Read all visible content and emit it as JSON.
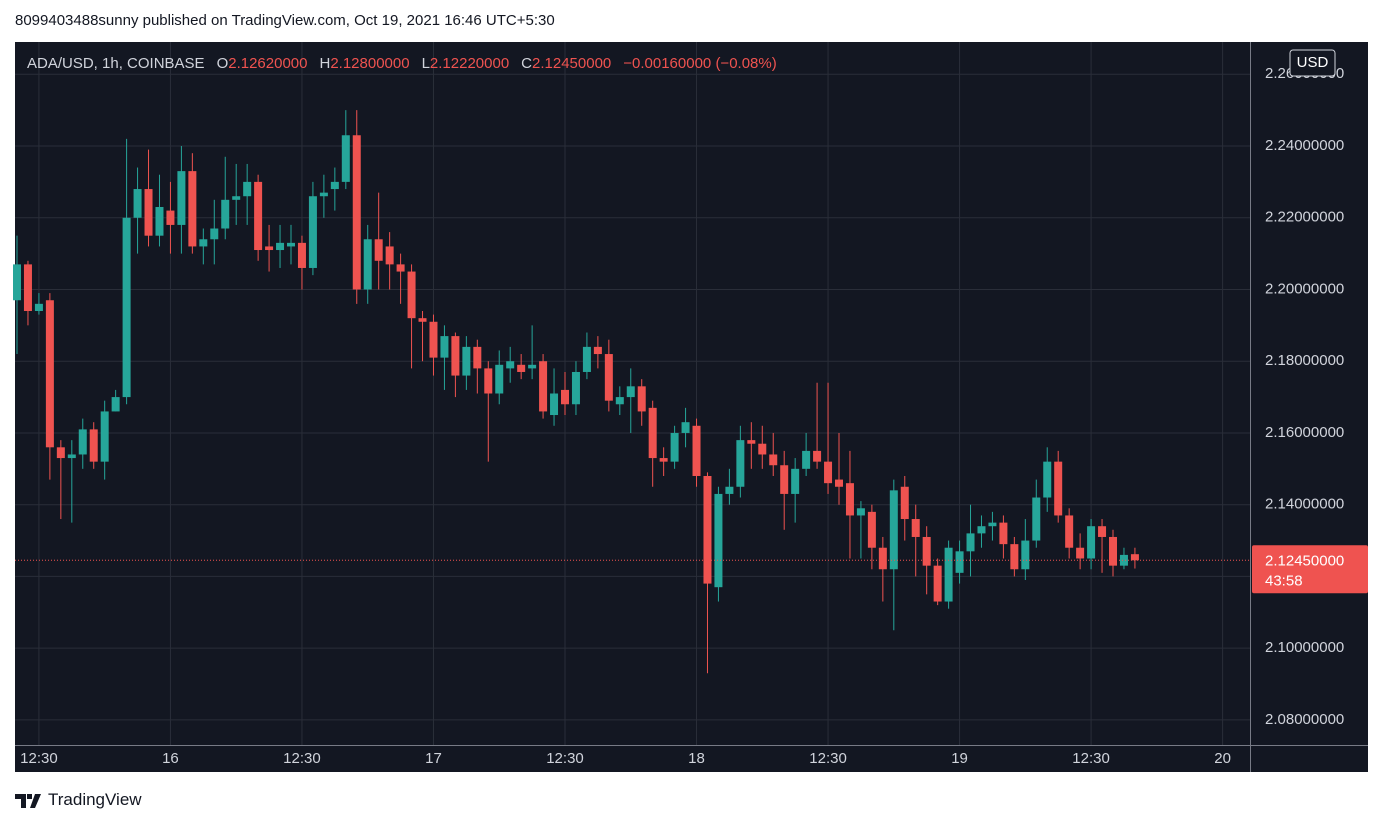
{
  "header": "8099403488sunny published on TradingView.com, Oct 19, 2021 16:46 UTC+5:30",
  "footer": "TradingView",
  "chart_data": {
    "type": "candlestick",
    "legend": {
      "symbol": "ADA/USD, 1h, COINBASE",
      "fields": [
        {
          "label": "O",
          "value": "2.12620000"
        },
        {
          "label": "H",
          "value": "2.12800000"
        },
        {
          "label": "L",
          "value": "2.12220000"
        },
        {
          "label": "C",
          "value": "2.12450000"
        }
      ],
      "change": "−0.00160000 (−0.08%)"
    },
    "currency": "USD",
    "up_color": "#26a69a",
    "down_color": "#ef5350",
    "grid": true,
    "xticks": [
      "12:30",
      "16",
      "12:30",
      "17",
      "12:30",
      "18",
      "12:30",
      "19",
      "12:30",
      "20"
    ],
    "ylim": [
      2.073,
      2.269
    ],
    "yticks": [
      {
        "value": 2.08,
        "label": "2.08000000"
      },
      {
        "value": 2.1,
        "label": "2.10000000"
      },
      {
        "value": 2.12,
        "label": "2.12000000"
      },
      {
        "value": 2.14,
        "label": "2.14000000"
      },
      {
        "value": 2.16,
        "label": "2.16000000"
      },
      {
        "value": 2.18,
        "label": "2.18000000"
      },
      {
        "value": 2.2,
        "label": "2.20000000"
      },
      {
        "value": 2.22,
        "label": "2.22000000"
      },
      {
        "value": 2.24,
        "label": "2.24000000"
      },
      {
        "value": 2.26,
        "label": "2.26000000"
      }
    ],
    "last_price": {
      "value": 2.1245,
      "label": "2.12450000",
      "countdown": "43:58"
    },
    "open": [
      2.197,
      2.207,
      2.194,
      2.197,
      2.156,
      2.153,
      2.154,
      2.161,
      2.152,
      2.166,
      2.17,
      2.22,
      2.228,
      2.215,
      2.222,
      2.218,
      2.233,
      2.212,
      2.214,
      2.217,
      2.225,
      2.226,
      2.23,
      2.212,
      2.211,
      2.212,
      2.213,
      2.206,
      2.226,
      2.228,
      2.23,
      2.243,
      2.2,
      2.214,
      2.212,
      2.207,
      2.205,
      2.192,
      2.191,
      2.181,
      2.187,
      2.176,
      2.184,
      2.178,
      2.171,
      2.178,
      2.179,
      2.178,
      2.18,
      2.165,
      2.172,
      2.168,
      2.177,
      2.184,
      2.182,
      2.168,
      2.17,
      2.173,
      2.167,
      2.153,
      2.152,
      2.16,
      2.162,
      2.148,
      2.117,
      2.143,
      2.145,
      2.158,
      2.157,
      2.154,
      2.151,
      2.143,
      2.15,
      2.155,
      2.152,
      2.147,
      2.146,
      2.137,
      2.138,
      2.128,
      2.122,
      2.145,
      2.136,
      2.131,
      2.123,
      2.113,
      2.121,
      2.127,
      2.132,
      2.134,
      2.135,
      2.129,
      2.122,
      2.13,
      2.142,
      2.152,
      2.137,
      2.128,
      2.125,
      2.134,
      2.131,
      2.123,
      2.1262
    ],
    "high": [
      2.215,
      2.208,
      2.199,
      2.199,
      2.158,
      2.158,
      2.164,
      2.163,
      2.169,
      2.172,
      2.242,
      2.234,
      2.239,
      2.232,
      2.23,
      2.24,
      2.238,
      2.217,
      2.225,
      2.237,
      2.235,
      2.235,
      2.232,
      2.218,
      2.218,
      2.218,
      2.215,
      2.23,
      2.232,
      2.234,
      2.25,
      2.25,
      2.218,
      2.227,
      2.216,
      2.21,
      2.207,
      2.194,
      2.193,
      2.19,
      2.188,
      2.187,
      2.186,
      2.18,
      2.183,
      2.184,
      2.182,
      2.19,
      2.182,
      2.178,
      2.177,
      2.18,
      2.188,
      2.187,
      2.186,
      2.173,
      2.178,
      2.175,
      2.169,
      2.156,
      2.162,
      2.167,
      2.164,
      2.149,
      2.145,
      2.15,
      2.162,
      2.163,
      2.162,
      2.16,
      2.155,
      2.153,
      2.16,
      2.174,
      2.174,
      2.16,
      2.155,
      2.141,
      2.14,
      2.131,
      2.147,
      2.148,
      2.14,
      2.134,
      2.125,
      2.13,
      2.13,
      2.14,
      2.137,
      2.138,
      2.137,
      2.131,
      2.136,
      2.147,
      2.156,
      2.155,
      2.139,
      2.132,
      2.136,
      2.136,
      2.133,
      2.128,
      2.128
    ],
    "low": [
      2.182,
      2.19,
      2.193,
      2.147,
      2.136,
      2.135,
      2.15,
      2.15,
      2.147,
      2.166,
      2.168,
      2.21,
      2.212,
      2.212,
      2.21,
      2.21,
      2.21,
      2.207,
      2.207,
      2.214,
      2.218,
      2.218,
      2.208,
      2.205,
      2.206,
      2.207,
      2.2,
      2.204,
      2.22,
      2.222,
      2.228,
      2.196,
      2.196,
      2.2,
      2.2,
      2.196,
      2.178,
      2.18,
      2.176,
      2.172,
      2.17,
      2.172,
      2.171,
      2.152,
      2.168,
      2.174,
      2.175,
      2.175,
      2.164,
      2.162,
      2.165,
      2.165,
      2.175,
      2.178,
      2.166,
      2.165,
      2.16,
      2.162,
      2.145,
      2.148,
      2.15,
      2.156,
      2.145,
      2.093,
      2.113,
      2.14,
      2.142,
      2.15,
      2.15,
      2.148,
      2.133,
      2.135,
      2.148,
      2.15,
      2.143,
      2.14,
      2.125,
      2.125,
      2.122,
      2.113,
      2.105,
      2.13,
      2.12,
      2.115,
      2.112,
      2.111,
      2.118,
      2.12,
      2.128,
      2.13,
      2.125,
      2.12,
      2.119,
      2.128,
      2.138,
      2.135,
      2.125,
      2.122,
      2.122,
      2.121,
      2.12,
      2.122,
      2.1222
    ],
    "close": [
      2.207,
      2.194,
      2.196,
      2.156,
      2.153,
      2.154,
      2.161,
      2.152,
      2.166,
      2.17,
      2.22,
      2.228,
      2.215,
      2.223,
      2.218,
      2.233,
      2.212,
      2.214,
      2.217,
      2.225,
      2.226,
      2.23,
      2.211,
      2.211,
      2.213,
      2.213,
      2.206,
      2.226,
      2.227,
      2.23,
      2.243,
      2.2,
      2.214,
      2.208,
      2.207,
      2.205,
      2.192,
      2.191,
      2.181,
      2.187,
      2.176,
      2.184,
      2.178,
      2.171,
      2.179,
      2.18,
      2.177,
      2.179,
      2.166,
      2.171,
      2.168,
      2.177,
      2.184,
      2.182,
      2.169,
      2.17,
      2.173,
      2.166,
      2.153,
      2.152,
      2.16,
      2.163,
      2.148,
      2.118,
      2.143,
      2.145,
      2.158,
      2.157,
      2.154,
      2.151,
      2.143,
      2.15,
      2.155,
      2.152,
      2.146,
      2.145,
      2.137,
      2.139,
      2.128,
      2.122,
      2.144,
      2.136,
      2.131,
      2.123,
      2.113,
      2.128,
      2.127,
      2.132,
      2.134,
      2.135,
      2.129,
      2.122,
      2.13,
      2.142,
      2.152,
      2.137,
      2.128,
      2.125,
      2.134,
      2.131,
      2.123,
      2.126,
      2.1245
    ]
  }
}
